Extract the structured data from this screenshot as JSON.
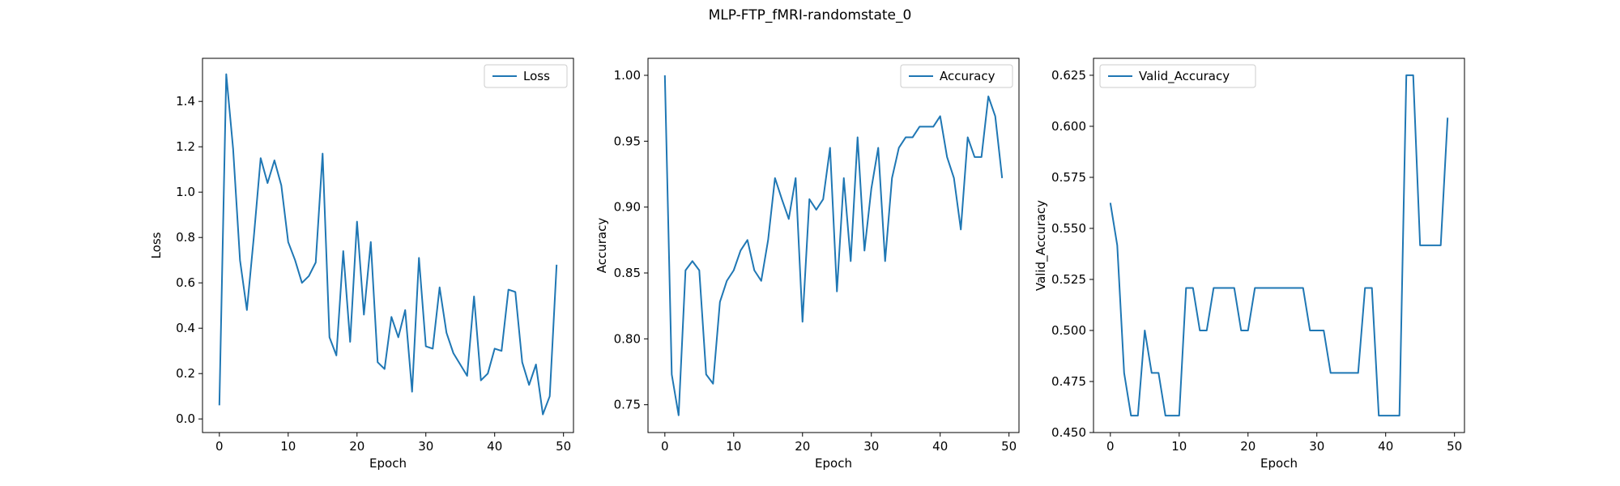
{
  "figure": {
    "title": "MLP-FTP_fMRI-randomstate_0"
  },
  "chart_data": [
    {
      "type": "line",
      "xlabel": "Epoch",
      "ylabel": "Loss",
      "xlim": [
        -2.45,
        51.45
      ],
      "ylim": [
        -0.06,
        1.59
      ],
      "xticks": [
        0,
        10,
        20,
        30,
        40,
        50
      ],
      "yticks": [
        0.0,
        0.2,
        0.4,
        0.6,
        0.8,
        1.0,
        1.2,
        1.4
      ],
      "ytick_decimals": 1,
      "grid": false,
      "legend": {
        "placement": "top-right"
      },
      "line_color": "#1f77b4",
      "series": [
        {
          "name": "Loss",
          "x": [
            0,
            1,
            2,
            3,
            4,
            5,
            6,
            7,
            8,
            9,
            10,
            11,
            12,
            13,
            14,
            15,
            16,
            17,
            18,
            19,
            20,
            21,
            22,
            23,
            24,
            25,
            26,
            27,
            28,
            29,
            30,
            31,
            32,
            33,
            34,
            35,
            36,
            37,
            38,
            39,
            40,
            41,
            42,
            43,
            44,
            45,
            46,
            47,
            48,
            49
          ],
          "values": [
            0.06,
            1.52,
            1.19,
            0.7,
            0.48,
            0.8,
            1.15,
            1.04,
            1.14,
            1.03,
            0.78,
            0.7,
            0.6,
            0.63,
            0.69,
            1.17,
            0.36,
            0.28,
            0.74,
            0.34,
            0.87,
            0.46,
            0.78,
            0.25,
            0.22,
            0.45,
            0.36,
            0.48,
            0.12,
            0.71,
            0.32,
            0.31,
            0.58,
            0.38,
            0.29,
            0.24,
            0.19,
            0.54,
            0.17,
            0.2,
            0.31,
            0.3,
            0.57,
            0.56,
            0.25,
            0.15,
            0.24,
            0.02,
            0.1,
            0.68
          ]
        }
      ]
    },
    {
      "type": "line",
      "xlabel": "Epoch",
      "ylabel": "Accuracy",
      "xlim": [
        -2.45,
        51.45
      ],
      "ylim": [
        0.7289,
        1.0129
      ],
      "xticks": [
        0,
        10,
        20,
        30,
        40,
        50
      ],
      "yticks": [
        0.75,
        0.8,
        0.85,
        0.9,
        0.95,
        1.0
      ],
      "ytick_decimals": 2,
      "grid": false,
      "legend": {
        "placement": "top-right"
      },
      "line_color": "#1f77b4",
      "series": [
        {
          "name": "Accuracy",
          "x": [
            0,
            1,
            2,
            3,
            4,
            5,
            6,
            7,
            8,
            9,
            10,
            11,
            12,
            13,
            14,
            15,
            16,
            17,
            18,
            19,
            20,
            21,
            22,
            23,
            24,
            25,
            26,
            27,
            28,
            29,
            30,
            31,
            32,
            33,
            34,
            35,
            36,
            37,
            38,
            39,
            40,
            41,
            42,
            43,
            44,
            45,
            46,
            47,
            48,
            49
          ],
          "values": [
            1.0,
            0.773,
            0.742,
            0.852,
            0.859,
            0.852,
            0.773,
            0.766,
            0.828,
            0.844,
            0.852,
            0.867,
            0.875,
            0.852,
            0.844,
            0.875,
            0.922,
            0.906,
            0.891,
            0.922,
            0.813,
            0.906,
            0.898,
            0.906,
            0.945,
            0.836,
            0.922,
            0.859,
            0.953,
            0.867,
            0.914,
            0.945,
            0.859,
            0.922,
            0.945,
            0.953,
            0.953,
            0.961,
            0.961,
            0.961,
            0.969,
            0.938,
            0.922,
            0.883,
            0.953,
            0.938,
            0.938,
            0.984,
            0.969,
            0.922
          ]
        }
      ]
    },
    {
      "type": "line",
      "xlabel": "Epoch",
      "ylabel": "Valid_Accuracy",
      "xlim": [
        -2.45,
        51.45
      ],
      "ylim": [
        0.45,
        0.6333
      ],
      "xticks": [
        0,
        10,
        20,
        30,
        40,
        50
      ],
      "yticks": [
        0.45,
        0.475,
        0.5,
        0.525,
        0.55,
        0.575,
        0.6,
        0.625
      ],
      "ytick_decimals": 3,
      "grid": false,
      "legend": {
        "placement": "top-left"
      },
      "line_color": "#1f77b4",
      "series": [
        {
          "name": "Valid_Accuracy",
          "x": [
            0,
            1,
            2,
            3,
            4,
            5,
            6,
            7,
            8,
            9,
            10,
            11,
            12,
            13,
            14,
            15,
            16,
            17,
            18,
            19,
            20,
            21,
            22,
            23,
            24,
            25,
            26,
            27,
            28,
            29,
            30,
            31,
            32,
            33,
            34,
            35,
            36,
            37,
            38,
            39,
            40,
            41,
            42,
            43,
            44,
            45,
            46,
            47,
            48,
            49
          ],
          "values": [
            0.5625,
            0.5417,
            0.4792,
            0.4583,
            0.4583,
            0.5,
            0.4792,
            0.4792,
            0.4583,
            0.4583,
            0.4583,
            0.5208,
            0.5208,
            0.5,
            0.5,
            0.5208,
            0.5208,
            0.5208,
            0.5208,
            0.5,
            0.5,
            0.5208,
            0.5208,
            0.5208,
            0.5208,
            0.5208,
            0.5208,
            0.5208,
            0.5208,
            0.5,
            0.5,
            0.5,
            0.4792,
            0.4792,
            0.4792,
            0.4792,
            0.4792,
            0.5208,
            0.5208,
            0.4583,
            0.4583,
            0.4583,
            0.4583,
            0.625,
            0.625,
            0.5417,
            0.5417,
            0.5417,
            0.5417,
            0.6042
          ]
        }
      ]
    }
  ]
}
